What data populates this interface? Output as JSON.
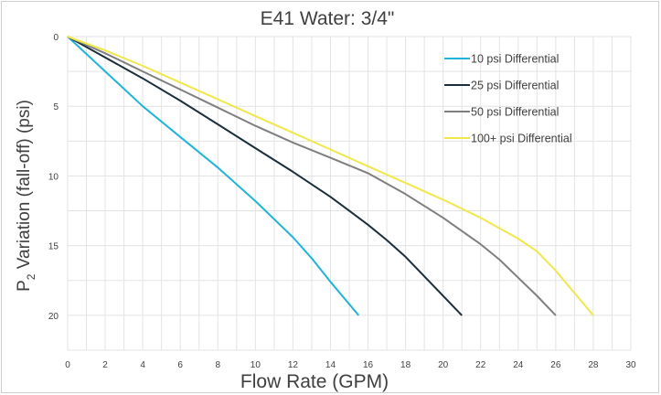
{
  "chart_data": {
    "type": "line",
    "title": "E41 Water: 3/4\"",
    "xlabel": "Flow Rate (GPM)",
    "ylabel_prefix": "P",
    "ylabel_subscript": "2",
    "ylabel_rest": " Variation (fall-off) (psi)",
    "xlim": [
      0,
      30
    ],
    "ylim": [
      0,
      22.5
    ],
    "y_inverted": true,
    "x_ticks": [
      0,
      2,
      4,
      6,
      8,
      10,
      12,
      14,
      16,
      18,
      20,
      22,
      24,
      26,
      28,
      30
    ],
    "y_ticks": [
      0,
      5,
      10,
      15,
      20
    ],
    "grid": true,
    "legend_position": "upper-right inside plot",
    "series": [
      {
        "name": "10 psi Differential",
        "color": "#1fb4d8",
        "x": [
          0,
          2,
          4,
          6,
          8,
          10,
          12,
          13,
          14,
          15.5
        ],
        "y": [
          0,
          2.5,
          5.0,
          7.2,
          9.4,
          11.8,
          14.4,
          15.9,
          17.6,
          20
        ]
      },
      {
        "name": "25 psi Differential",
        "color": "#1a2e3b",
        "x": [
          0,
          2,
          4,
          6,
          8,
          10,
          12,
          14,
          16,
          17,
          18,
          19,
          21
        ],
        "y": [
          0,
          1.5,
          3.0,
          4.6,
          6.3,
          8.0,
          9.7,
          11.5,
          13.5,
          14.6,
          15.8,
          17.2,
          20
        ]
      },
      {
        "name": "50 psi Differential",
        "color": "#7f7f7f",
        "x": [
          0,
          2,
          4,
          6,
          8,
          10,
          12,
          14,
          16,
          18,
          20,
          22,
          23,
          24,
          25,
          26
        ],
        "y": [
          0,
          1.2,
          2.5,
          3.8,
          5.1,
          6.4,
          7.6,
          8.7,
          9.8,
          11.3,
          13.0,
          14.9,
          16.0,
          17.3,
          18.6,
          20
        ]
      },
      {
        "name": "100+ psi Differential",
        "color": "#f0e84a",
        "x": [
          0,
          2,
          4,
          6,
          8,
          10,
          12,
          14,
          16,
          18,
          20,
          22,
          24,
          25,
          26,
          28
        ],
        "y": [
          0,
          1.0,
          2.1,
          3.3,
          4.5,
          5.7,
          6.9,
          8.1,
          9.3,
          10.5,
          11.7,
          13.0,
          14.5,
          15.4,
          16.8,
          20
        ]
      }
    ]
  }
}
